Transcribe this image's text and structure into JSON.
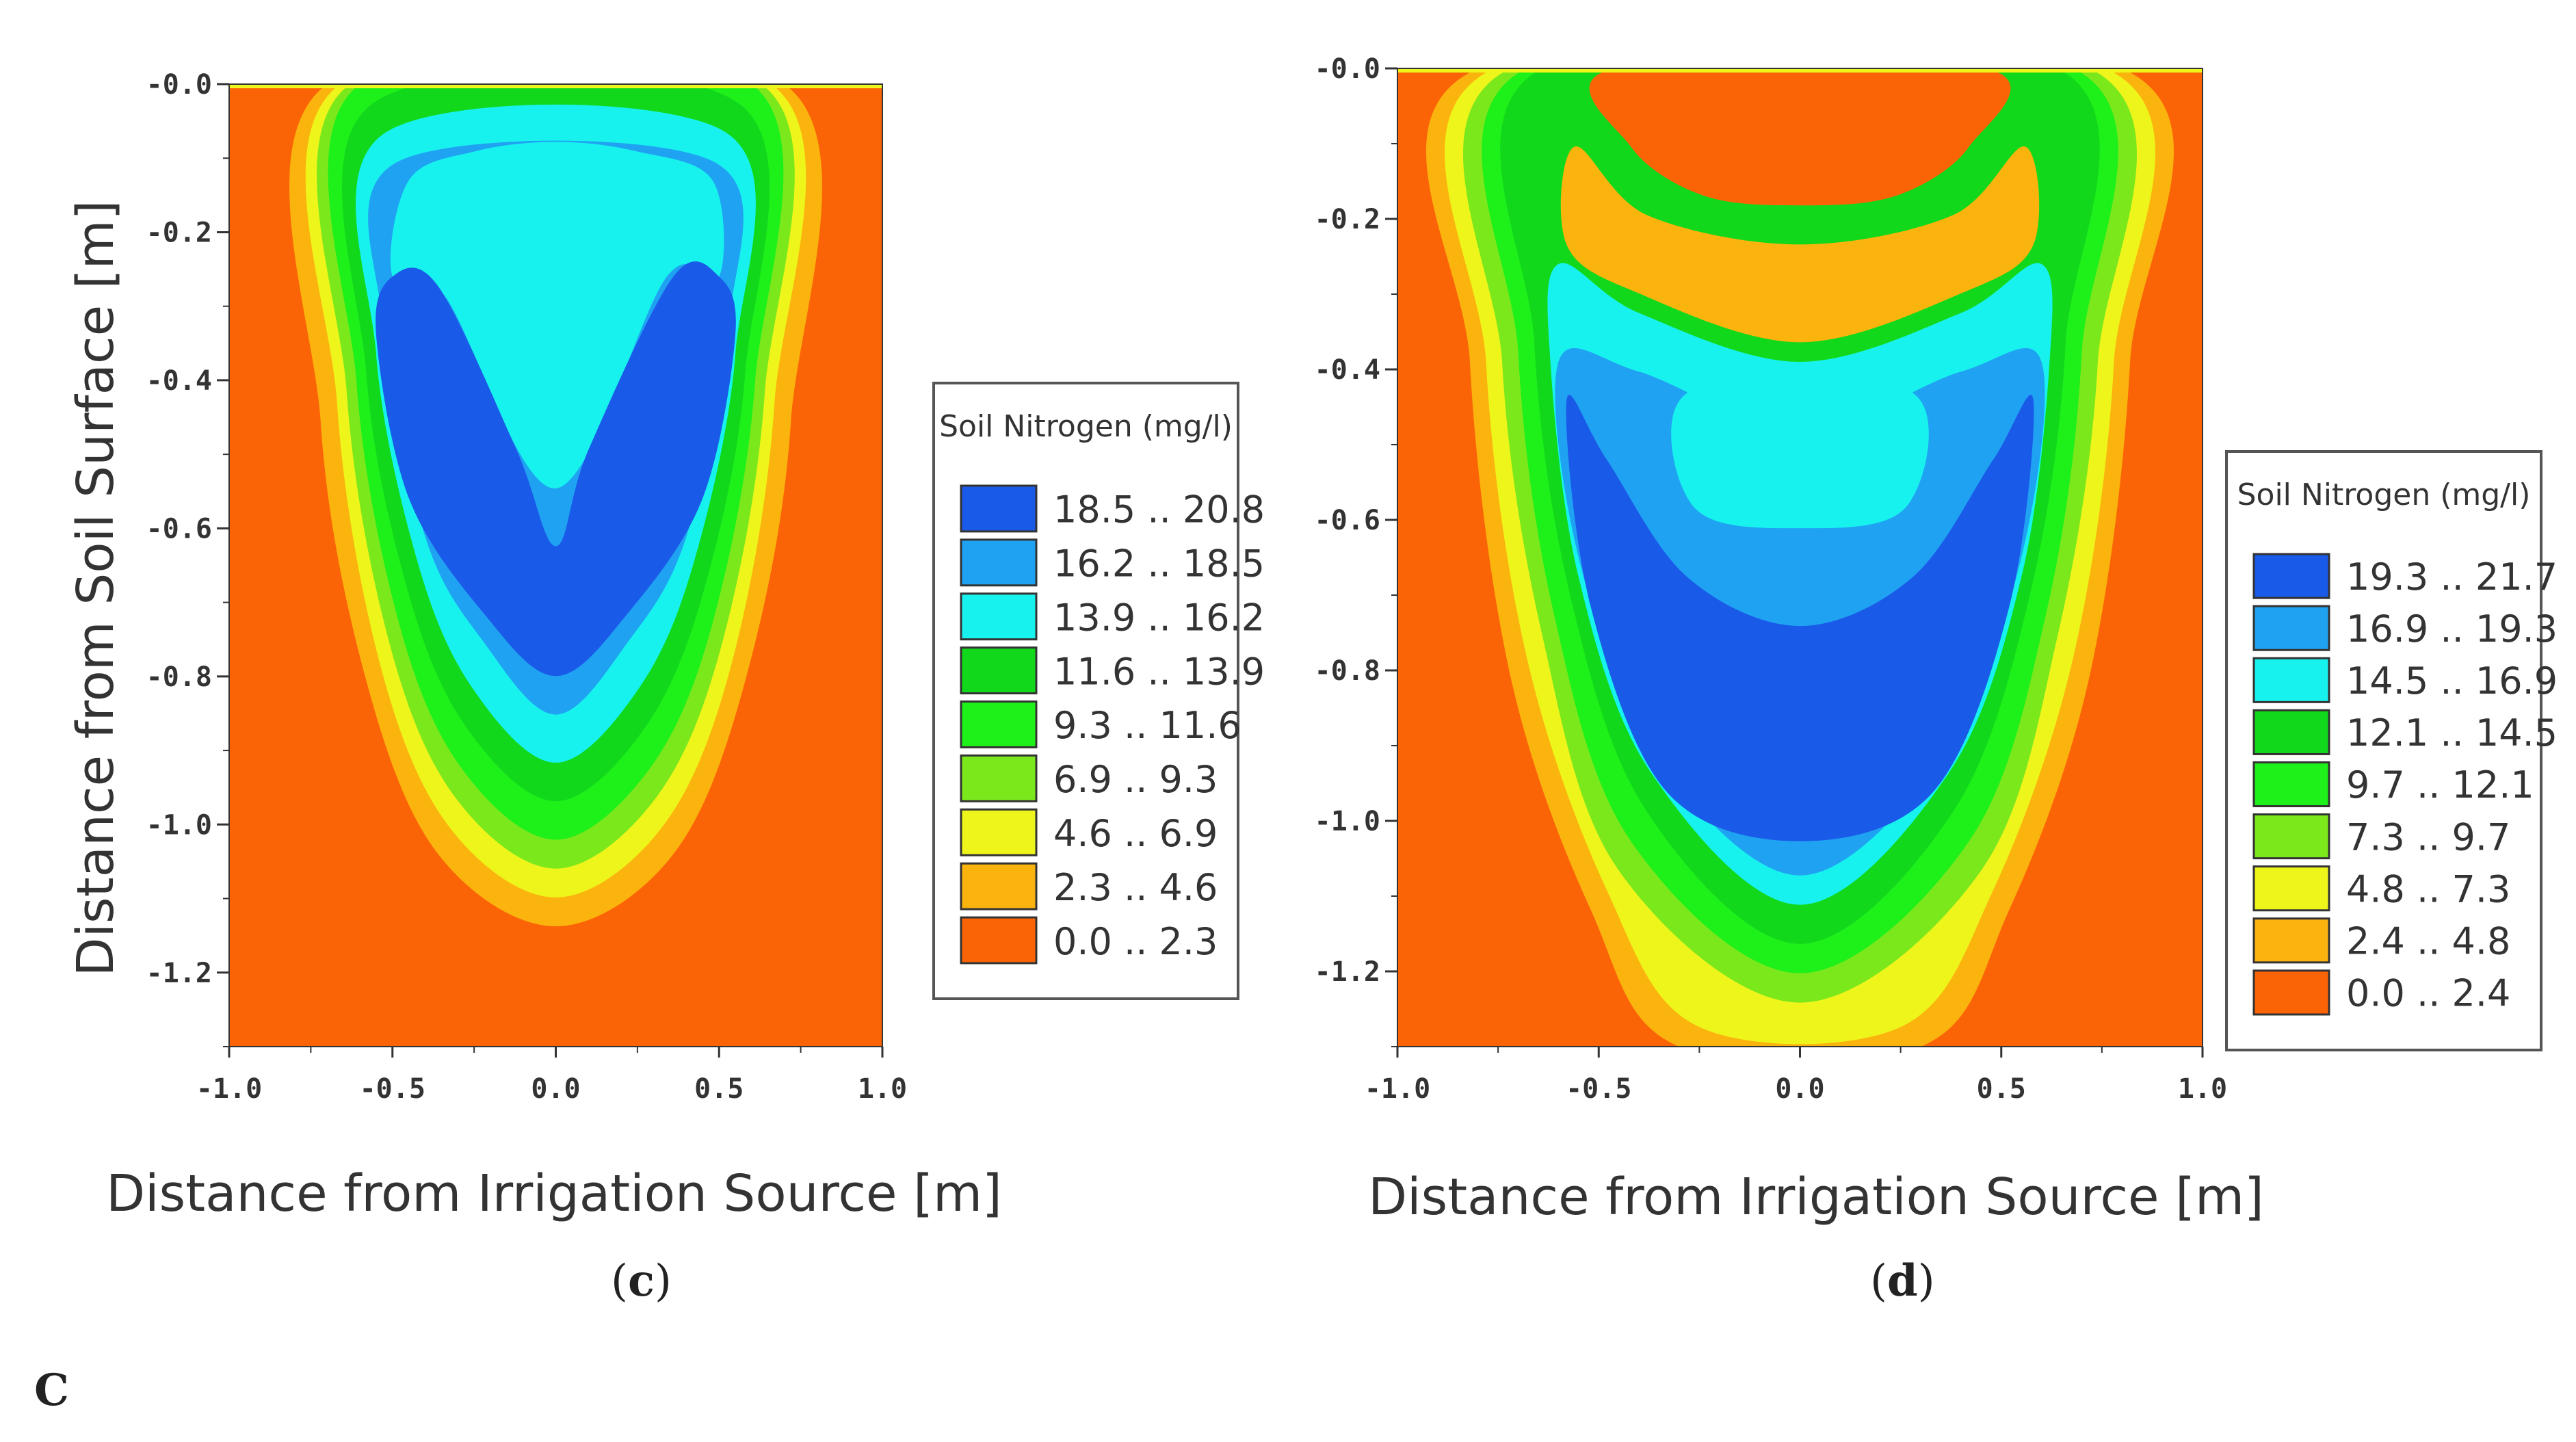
{
  "chart_data": [
    {
      "type": "heatmap",
      "panel_label": "c",
      "xlabel": "Distance from Irrigation Source [m]",
      "ylabel": "Distance from Soil Surface [m]",
      "xlim": [
        -1.0,
        1.0
      ],
      "ylim": [
        -1.3,
        0.0
      ],
      "x_ticks": [
        "-1.0",
        "-0.5",
        "0.0",
        "0.5",
        "1.0"
      ],
      "y_ticks": [
        "-0.0",
        "-0.2",
        "-0.4",
        "-0.6",
        "-0.8",
        "-1.0",
        "-1.2"
      ],
      "legend_title": "Soil Nitrogen (mg/l)",
      "legend": [
        {
          "range": "18.5 .. 20.8",
          "color": "#1a5ae8"
        },
        {
          "range": "16.2 .. 18.5",
          "color": "#1fa2f2"
        },
        {
          "range": "13.9 .. 16.2",
          "color": "#18f2ee"
        },
        {
          "range": "11.6 .. 13.9",
          "color": "#12d81c"
        },
        {
          "range": "9.3 .. 11.6",
          "color": "#1ef01a"
        },
        {
          "range": "6.9 .. 9.3",
          "color": "#7be81c"
        },
        {
          "range": "4.6 .. 6.9",
          "color": "#eef51a"
        },
        {
          "range": "2.3 .. 4.6",
          "color": "#fbb30e"
        },
        {
          "range": "0.0 .. 2.3",
          "color": "#fb6406"
        }
      ]
    },
    {
      "type": "heatmap",
      "panel_label": "d",
      "xlabel": "Distance from Irrigation Source [m]",
      "ylabel": "",
      "xlim": [
        -1.0,
        1.0
      ],
      "ylim": [
        -1.3,
        0.0
      ],
      "x_ticks": [
        "-1.0",
        "-0.5",
        "0.0",
        "0.5",
        "1.0"
      ],
      "y_ticks": [
        "-0.0",
        "-0.2",
        "-0.4",
        "-0.6",
        "-0.8",
        "-1.0",
        "-1.2"
      ],
      "legend_title": "Soil Nitrogen (mg/l)",
      "legend": [
        {
          "range": "19.3 .. 21.7",
          "color": "#1a5ae8"
        },
        {
          "range": "16.9 .. 19.3",
          "color": "#1fa2f2"
        },
        {
          "range": "14.5 .. 16.9",
          "color": "#18f2ee"
        },
        {
          "range": "12.1 .. 14.5",
          "color": "#12d81c"
        },
        {
          "range": "9.7 .. 12.1",
          "color": "#1ef01a"
        },
        {
          "range": "7.3 .. 9.7",
          "color": "#7be81c"
        },
        {
          "range": "4.8 .. 7.3",
          "color": "#eef51a"
        },
        {
          "range": "2.4 .. 4.8",
          "color": "#fbb30e"
        },
        {
          "range": "0.0 .. 2.4",
          "color": "#fb6406"
        }
      ]
    }
  ],
  "captions": {
    "c": "c",
    "d": "d"
  },
  "footnote": "C"
}
